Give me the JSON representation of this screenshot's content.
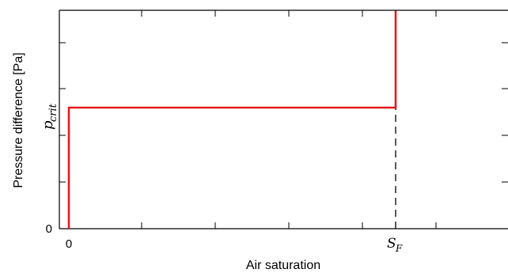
{
  "chart_data": {
    "type": "line",
    "title": "",
    "xlabel": "Air saturation",
    "ylabel": "Pressure difference [Pa]",
    "x_tick_labels": [
      "0",
      "S_F"
    ],
    "y_tick_labels": [
      "0",
      "p_crit"
    ],
    "xlim": [
      0,
      1.2
    ],
    "ylim": [
      0,
      1.9
    ],
    "grid": false,
    "legend": "none",
    "colors": {
      "series": "#e41a1c",
      "guide": "#000000"
    },
    "series": [
      {
        "x": [
          0,
          0,
          0.9,
          0.9
        ],
        "y": [
          0,
          1,
          1,
          1.8
        ]
      }
    ],
    "reference_lines": [
      {
        "style": "dashed",
        "x": [
          0.9,
          0.9
        ],
        "y": [
          0,
          1
        ]
      }
    ],
    "labels": {
      "x_zero": "0",
      "x_sf_main": "S",
      "x_sf_sub": "F",
      "y_zero": "0",
      "y_pcrit_main": "p",
      "y_pcrit_sub": "crit"
    }
  }
}
